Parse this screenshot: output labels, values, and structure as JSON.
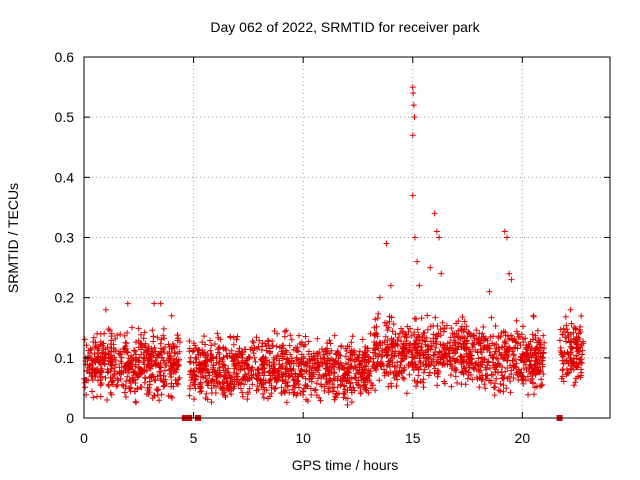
{
  "chart_data": {
    "type": "scatter",
    "title": "Day 062 of 2022, SRMTID for receiver park",
    "xlabel": "GPS time / hours",
    "ylabel": "SRMTID / TECUs",
    "xlim": [
      0,
      24
    ],
    "ylim": [
      0,
      0.6
    ],
    "x_ticks": [
      0,
      5,
      10,
      15,
      20
    ],
    "x_tick_labels": [
      "0",
      "5",
      "10",
      "15",
      "20"
    ],
    "y_ticks": [
      0,
      0.1,
      0.2,
      0.3,
      0.4,
      0.5,
      0.6
    ],
    "y_tick_labels": [
      "0",
      "0.1",
      "0.2",
      "0.3",
      "0.4",
      "0.5",
      "0.6"
    ],
    "grid": true,
    "marker": "plus",
    "color": "#e00000",
    "segments": [
      {
        "x_start": 0.0,
        "x_end": 4.4,
        "baseline": 0.09
      },
      {
        "x_start": 4.8,
        "x_end": 13.2,
        "baseline": 0.08
      },
      {
        "x_start": 13.2,
        "x_end": 17.5,
        "baseline": 0.11
      },
      {
        "x_start": 17.5,
        "x_end": 21.0,
        "baseline": 0.1
      },
      {
        "x_start": 21.7,
        "x_end": 22.8,
        "baseline": 0.11
      }
    ],
    "notable_points": [
      {
        "x": 1.0,
        "y": 0.18
      },
      {
        "x": 2.0,
        "y": 0.19
      },
      {
        "x": 3.2,
        "y": 0.19
      },
      {
        "x": 3.5,
        "y": 0.19
      },
      {
        "x": 4.0,
        "y": 0.17
      },
      {
        "x": 13.5,
        "y": 0.2
      },
      {
        "x": 13.8,
        "y": 0.29
      },
      {
        "x": 14.0,
        "y": 0.22
      },
      {
        "x": 15.0,
        "y": 0.55
      },
      {
        "x": 15.02,
        "y": 0.54
      },
      {
        "x": 15.05,
        "y": 0.52
      },
      {
        "x": 15.08,
        "y": 0.5
      },
      {
        "x": 15.0,
        "y": 0.47
      },
      {
        "x": 15.0,
        "y": 0.37
      },
      {
        "x": 15.1,
        "y": 0.3
      },
      {
        "x": 15.2,
        "y": 0.26
      },
      {
        "x": 15.3,
        "y": 0.22
      },
      {
        "x": 16.0,
        "y": 0.34
      },
      {
        "x": 16.1,
        "y": 0.31
      },
      {
        "x": 16.2,
        "y": 0.3
      },
      {
        "x": 15.8,
        "y": 0.25
      },
      {
        "x": 16.3,
        "y": 0.24
      },
      {
        "x": 18.5,
        "y": 0.21
      },
      {
        "x": 19.2,
        "y": 0.31
      },
      {
        "x": 19.3,
        "y": 0.3
      },
      {
        "x": 19.4,
        "y": 0.24
      },
      {
        "x": 19.5,
        "y": 0.23
      },
      {
        "x": 20.5,
        "y": 0.17
      },
      {
        "x": 22.2,
        "y": 0.18
      }
    ],
    "zero_markers": [
      4.6,
      4.7,
      4.8,
      5.2,
      21.7
    ]
  }
}
